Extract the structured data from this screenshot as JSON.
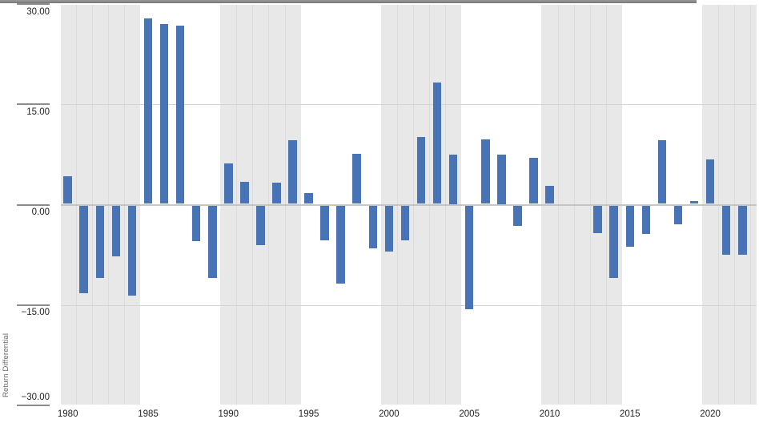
{
  "chart_data": {
    "type": "bar",
    "title": "",
    "xlabel": "",
    "ylabel": "Return Differential",
    "ylim": [
      -30,
      30
    ],
    "grid": true,
    "legend": null,
    "x": [
      1980,
      1981,
      1982,
      1983,
      1984,
      1985,
      1986,
      1987,
      1988,
      1989,
      1990,
      1991,
      1992,
      1993,
      1994,
      1995,
      1996,
      1997,
      1998,
      1999,
      2000,
      2001,
      2002,
      2003,
      2004,
      2005,
      2006,
      2007,
      2008,
      2009,
      2010,
      2011,
      2012,
      2013,
      2014,
      2015,
      2016,
      2017,
      2018,
      2019,
      2020,
      2021,
      2022
    ],
    "values": [
      4.2,
      -13.2,
      -11.0,
      -7.7,
      -13.6,
      27.8,
      27.0,
      26.8,
      -5.4,
      -11.0,
      6.2,
      3.4,
      -6.1,
      3.3,
      9.6,
      1.7,
      -5.3,
      -11.8,
      7.6,
      -6.5,
      -7.0,
      -5.3,
      10.1,
      18.3,
      7.5,
      -15.6,
      9.8,
      7.5,
      -3.2,
      7.0,
      2.8,
      0.0,
      0.0,
      -4.3,
      -11.0,
      -6.3,
      -4.4,
      9.7,
      -2.9,
      0.5,
      6.8,
      -7.5,
      -7.5
    ],
    "yticks": [
      {
        "value": 30,
        "label": "30.00"
      },
      {
        "value": 15,
        "label": "15.00"
      },
      {
        "value": 0,
        "label": "0.00"
      },
      {
        "value": -15,
        "label": "−15.00"
      },
      {
        "value": -30,
        "label": "−30.00"
      }
    ],
    "xticks": [
      {
        "value": 1980,
        "label": "1980"
      },
      {
        "value": 1985,
        "label": "1985"
      },
      {
        "value": 1990,
        "label": "1990"
      },
      {
        "value": 1995,
        "label": "1995"
      },
      {
        "value": 2000,
        "label": "2000"
      },
      {
        "value": 2005,
        "label": "2005"
      },
      {
        "value": 2010,
        "label": "2010"
      },
      {
        "value": 2015,
        "label": "2015"
      },
      {
        "value": 2020,
        "label": "2020"
      }
    ],
    "shaded_year_groups": [
      1980,
      1990,
      2000,
      2010,
      2020
    ],
    "colors": {
      "bar": "#4873b5",
      "band_shade": "#e8e8e8",
      "band_separator": "#dcdcdc",
      "gridline": "#d4d4d4",
      "zero_line": "#c5c5c5",
      "axis_line": "#7d7d7d",
      "top_border": "#949494",
      "tick_line": "#8c8c8c",
      "tick_text": "#222222",
      "axis_title_text": "#666666"
    }
  }
}
